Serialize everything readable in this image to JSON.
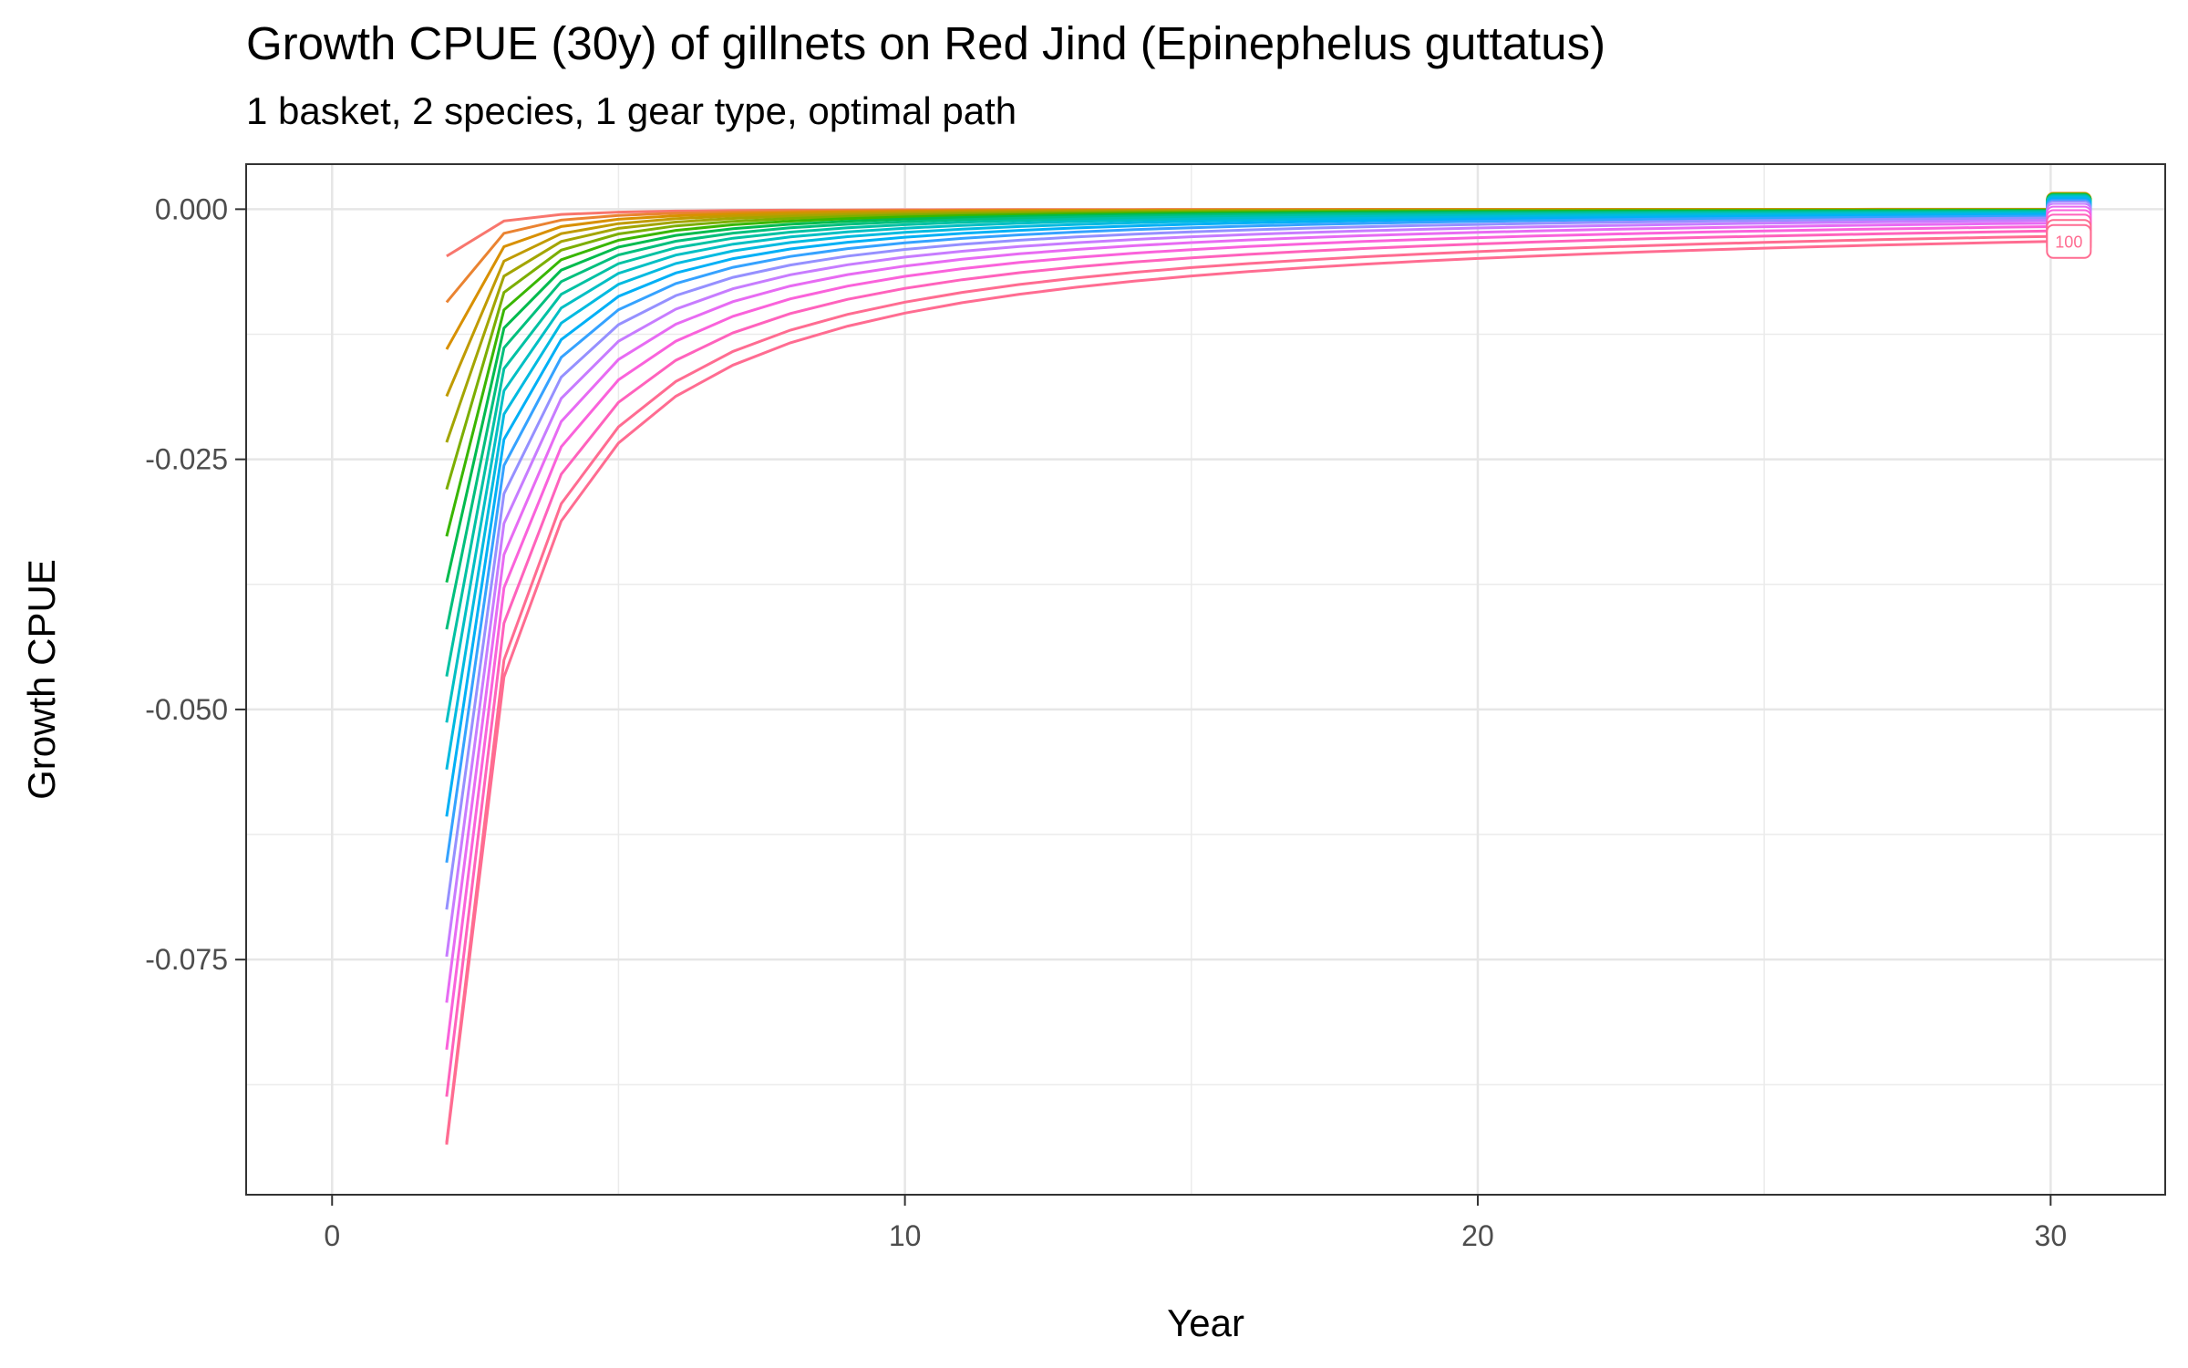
{
  "title": "Growth CPUE (30y) of gillnets on Red Jind (Epinephelus guttatus)",
  "subtitle": "1 basket, 2 species, 1 gear type, optimal path",
  "chart_data": {
    "type": "line",
    "xlabel": "Year",
    "ylabel": "Growth CPUE",
    "xlim": [
      -1.5,
      32
    ],
    "ylim": [
      -0.0985,
      0.0045
    ],
    "x_ticks": [
      0,
      10,
      20,
      30
    ],
    "x_tick_labels": [
      "0",
      "10",
      "20",
      "30"
    ],
    "y_ticks": [
      0.0,
      -0.025,
      -0.05,
      -0.075
    ],
    "y_tick_labels": [
      "0.000",
      "-0.025",
      "-0.050",
      "-0.075"
    ],
    "grid": true,
    "legend": "none",
    "x": [
      2,
      3,
      4,
      5,
      6,
      7,
      8,
      9,
      10,
      11,
      12,
      13,
      14,
      15,
      16,
      17,
      18,
      19,
      20,
      21,
      22,
      23,
      24,
      25,
      26,
      27,
      28,
      29,
      30
    ],
    "line_model": "y = y2 * (1/(x-1))^p, p = 2.0 - 1.0*(i/20)",
    "series_start_values_at_year_2": [
      -0.0047,
      -0.0093,
      -0.014,
      -0.0187,
      -0.0233,
      -0.028,
      -0.0327,
      -0.0373,
      -0.042,
      -0.0467,
      -0.0513,
      -0.056,
      -0.0607,
      -0.0653,
      -0.07,
      -0.0747,
      -0.0793,
      -0.084,
      -0.0887,
      -0.0933,
      -0.0935
    ],
    "series_end_label_visible": "100",
    "series_colors": [
      "#F8766D",
      "#EA8331",
      "#D89000",
      "#C09B00",
      "#A3A500",
      "#7CAE00",
      "#39B600",
      "#00BB4E",
      "#00BF7D",
      "#00C1A3",
      "#00BFC4",
      "#00BAE0",
      "#00B0F6",
      "#35A2FF",
      "#9590FF",
      "#C77CFF",
      "#E76BF3",
      "#FA62DB",
      "#FF62BC",
      "#FF6C91",
      "#FF6C91"
    ]
  }
}
